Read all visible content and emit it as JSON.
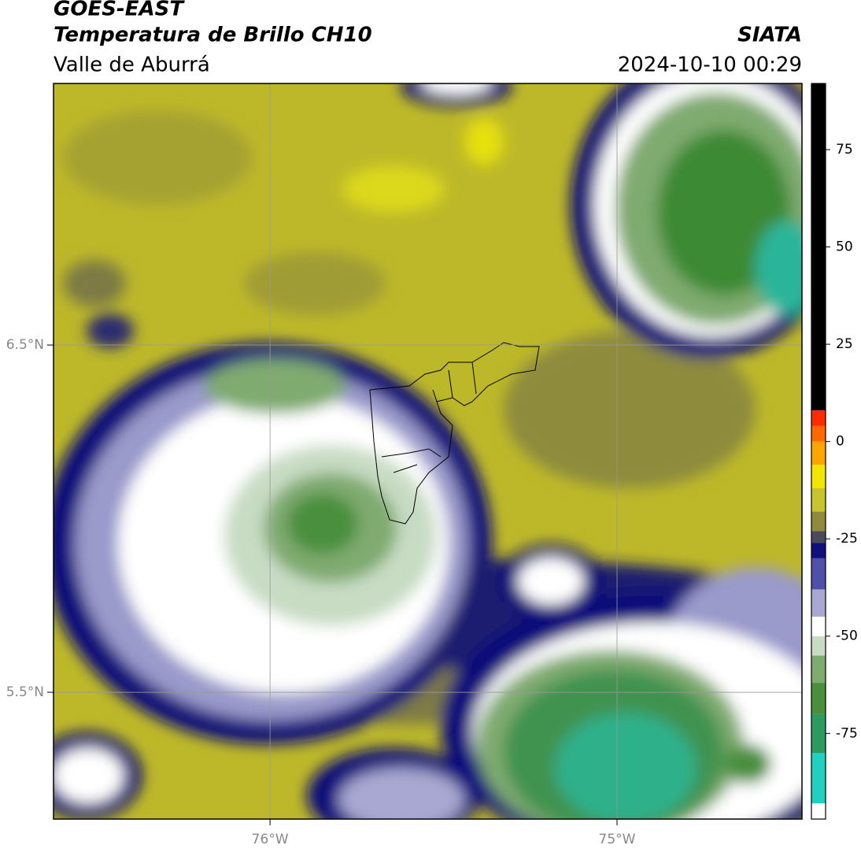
{
  "header": {
    "title": "GOES-EAST",
    "subtitle": "Temperatura de Brillo CH10",
    "source": "SIATA",
    "region": "Valle de Aburrá",
    "timestamp": "2024-10-10 00:29"
  },
  "map": {
    "xlim": [
      -76.624,
      -74.467
    ],
    "ylim": [
      5.135,
      7.253
    ],
    "xticks": [
      {
        "value": -76,
        "label": "76°W"
      },
      {
        "value": -75,
        "label": "75°W"
      }
    ],
    "yticks": [
      {
        "value": 6.5,
        "label": "6.5°N"
      },
      {
        "value": 5.5,
        "label": "5.5°N"
      }
    ],
    "grid": true
  },
  "colorbar": {
    "lim": [
      -97,
      92
    ],
    "ticks": [
      75,
      50,
      25,
      0,
      -25,
      -50,
      -75
    ],
    "bands": [
      {
        "from": 8,
        "to": 92,
        "color": "#000000"
      },
      {
        "from": 4,
        "to": 8,
        "color": "#ff2a00"
      },
      {
        "from": 0,
        "to": 4,
        "color": "#ff6a00"
      },
      {
        "from": -6,
        "to": 0,
        "color": "#ffa500"
      },
      {
        "from": -12,
        "to": -6,
        "color": "#f2e600"
      },
      {
        "from": -18,
        "to": -12,
        "color": "#c8c430"
      },
      {
        "from": -23,
        "to": -18,
        "color": "#8f8a3e"
      },
      {
        "from": -26,
        "to": -23,
        "color": "#4a4a5a"
      },
      {
        "from": -30,
        "to": -26,
        "color": "#10107a"
      },
      {
        "from": -38,
        "to": -30,
        "color": "#5050a8"
      },
      {
        "from": -45,
        "to": -38,
        "color": "#a8a8d2"
      },
      {
        "from": -50,
        "to": -45,
        "color": "#ffffff"
      },
      {
        "from": -55,
        "to": -50,
        "color": "#c8dcc4"
      },
      {
        "from": -62,
        "to": -55,
        "color": "#7faa70"
      },
      {
        "from": -70,
        "to": -62,
        "color": "#4a8f3c"
      },
      {
        "from": -80,
        "to": -70,
        "color": "#2f9a60"
      },
      {
        "from": -93,
        "to": -80,
        "color": "#22d0c0"
      },
      {
        "from": -97,
        "to": -93,
        "color": "#ffffff"
      }
    ]
  }
}
